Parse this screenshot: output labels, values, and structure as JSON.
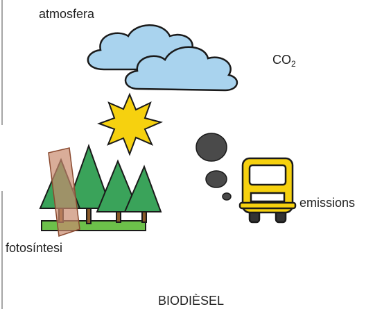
{
  "labels": {
    "atmosphere": "atmosfera",
    "co2": {
      "base": "CO",
      "subscript": "2"
    },
    "emissions": "emissions",
    "photosynthesis": "fotosíntesi",
    "title": "BIODIÈSEL"
  }
}
